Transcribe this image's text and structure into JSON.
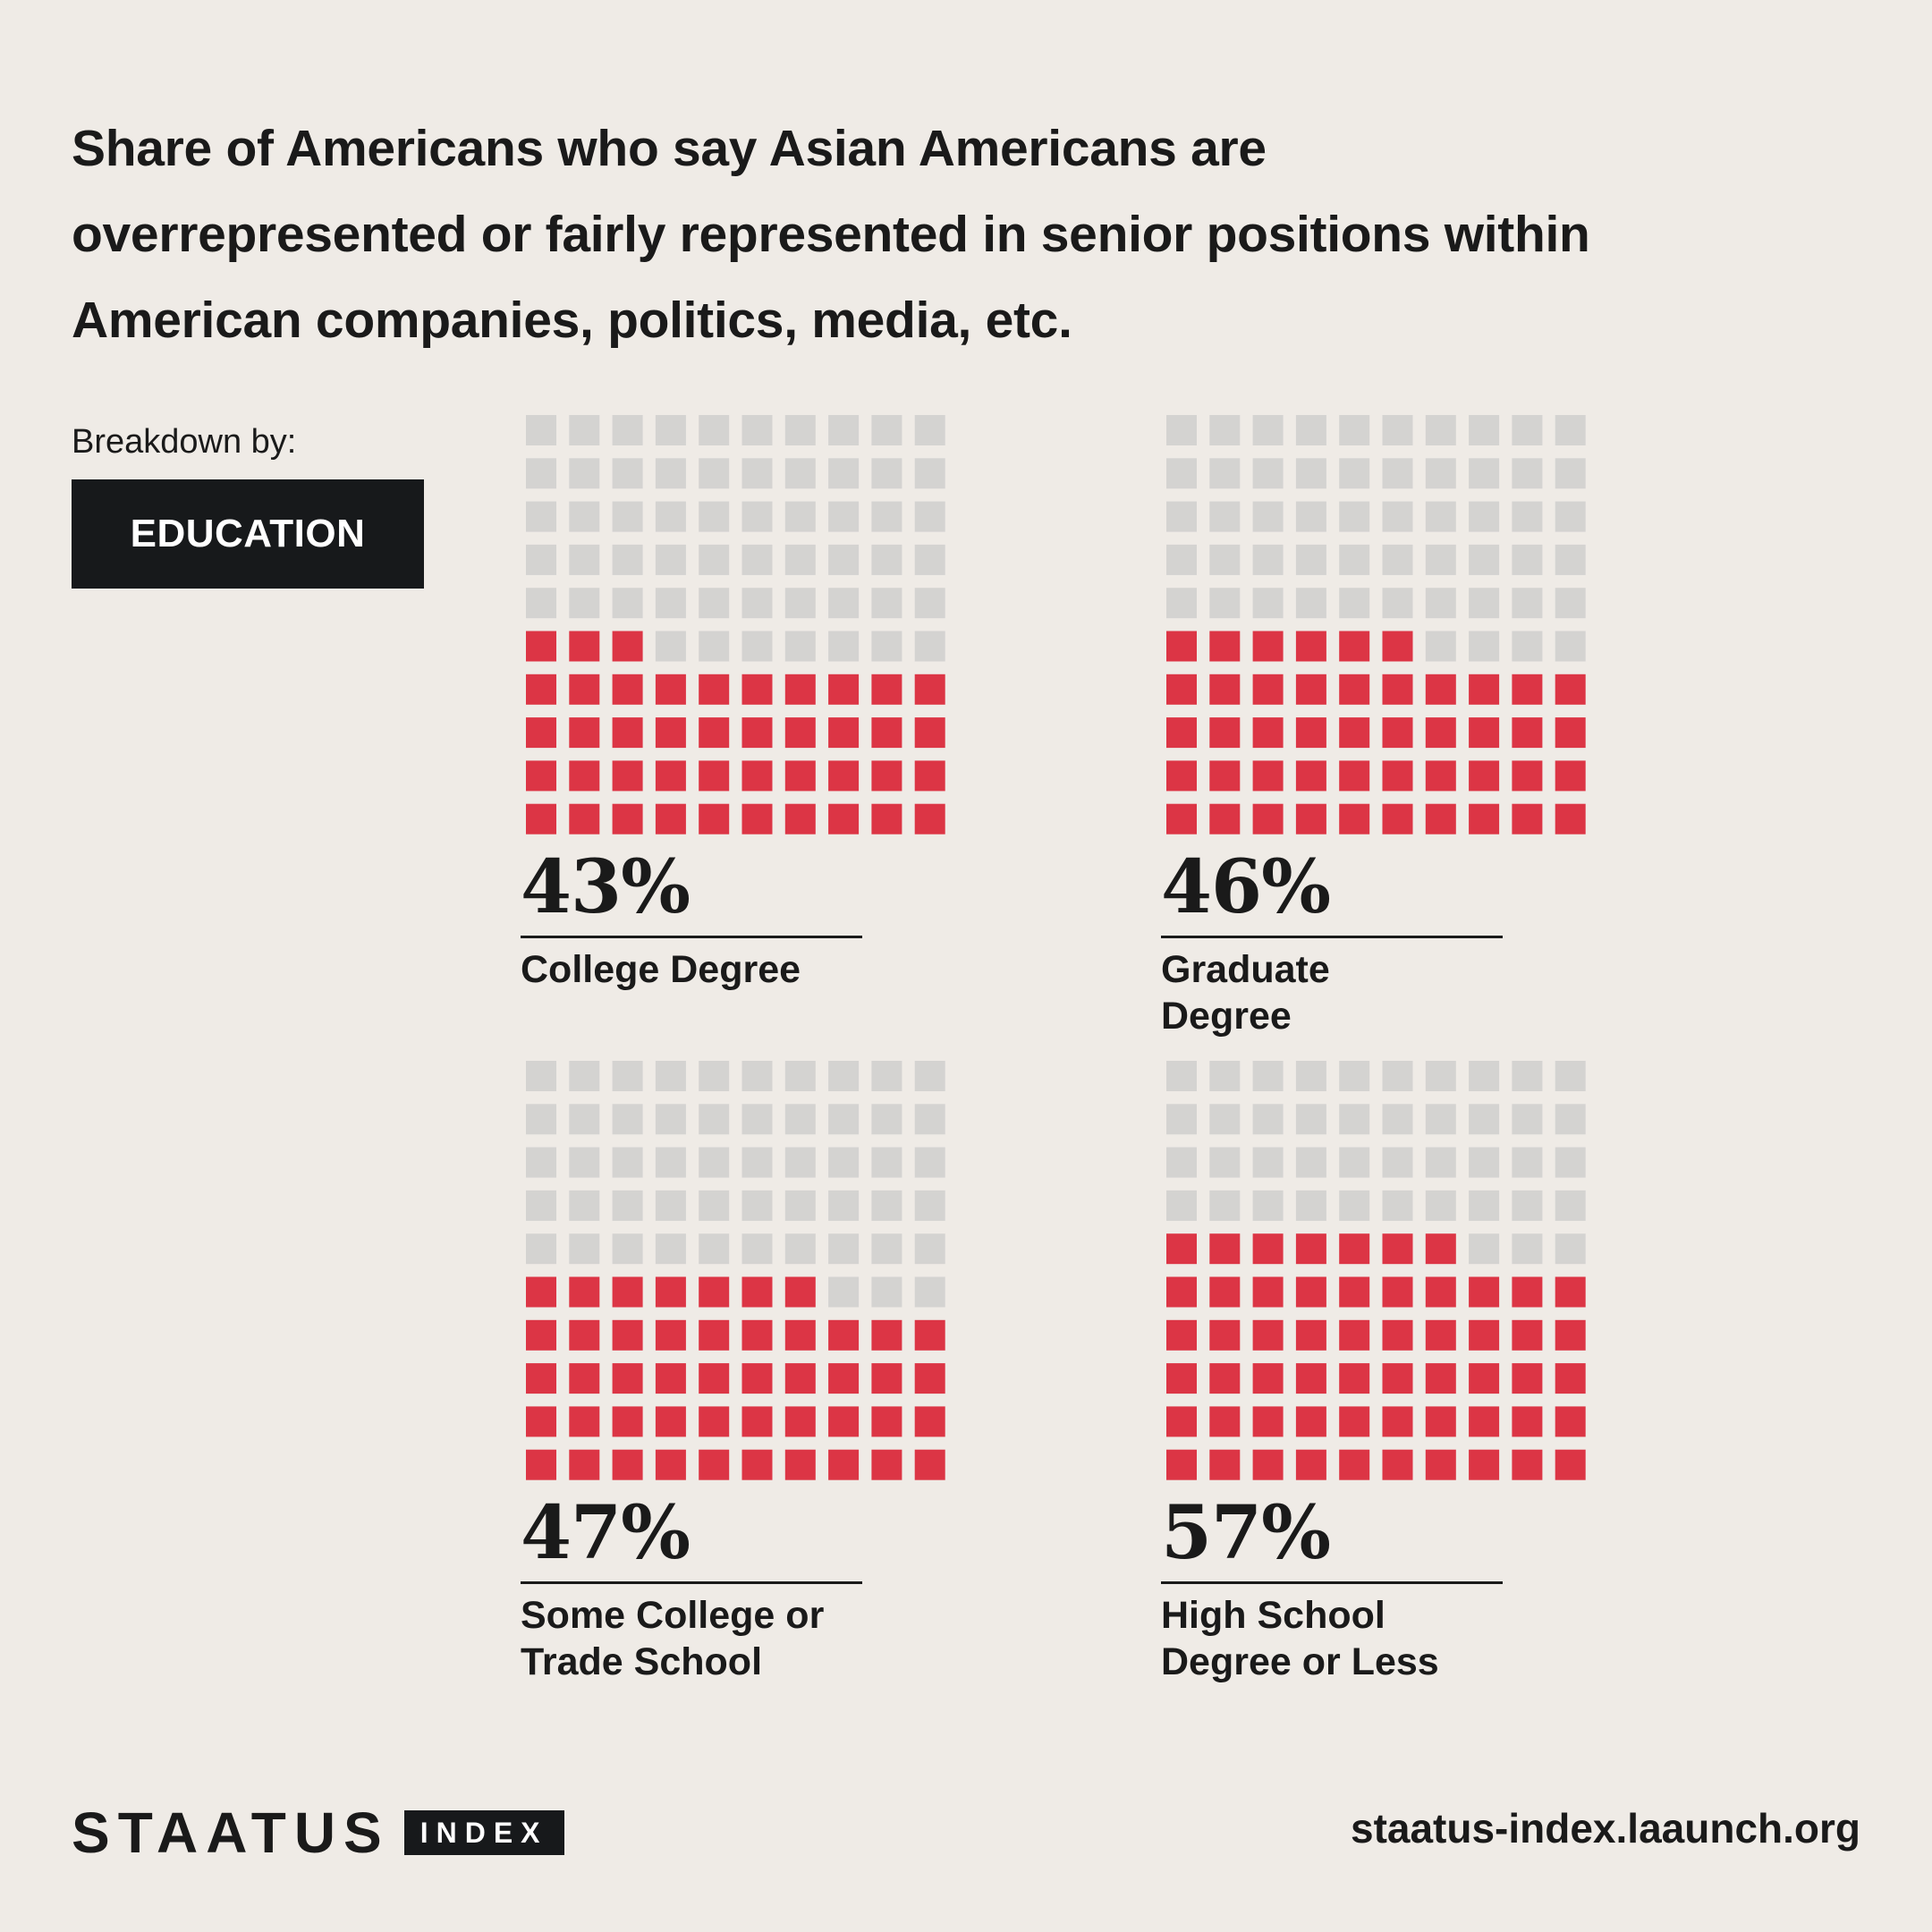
{
  "title": "Share of Americans who say Asian Americans are overrepresented or fairly represented in senior positions within American companies, politics, media, etc.",
  "breakdown_label": "Breakdown by:",
  "category": "EDUCATION",
  "colors": {
    "filled": "#dc3545",
    "empty": "#d4d3d1",
    "background": "#efebe6",
    "text": "#1a1a1a"
  },
  "chart_data": {
    "type": "waffle",
    "title": "Share of Americans who say Asian Americans are overrepresented or fairly represented in senior positions within American companies, politics, media, etc.",
    "grid": {
      "rows": 10,
      "cols": 10,
      "total": 100
    },
    "panels": [
      {
        "value": 43,
        "value_label": "43%",
        "label": "College Degree"
      },
      {
        "value": 46,
        "value_label": "46%",
        "label": "Graduate Degree"
      },
      {
        "value": 47,
        "value_label": "47%",
        "label": "Some College or Trade School"
      },
      {
        "value": 57,
        "value_label": "57%",
        "label": "High School Degree or Less"
      }
    ]
  },
  "footer": {
    "brand_word": "STAATUS",
    "brand_box": "INDEX",
    "url": "staatus-index.laaunch.org"
  }
}
